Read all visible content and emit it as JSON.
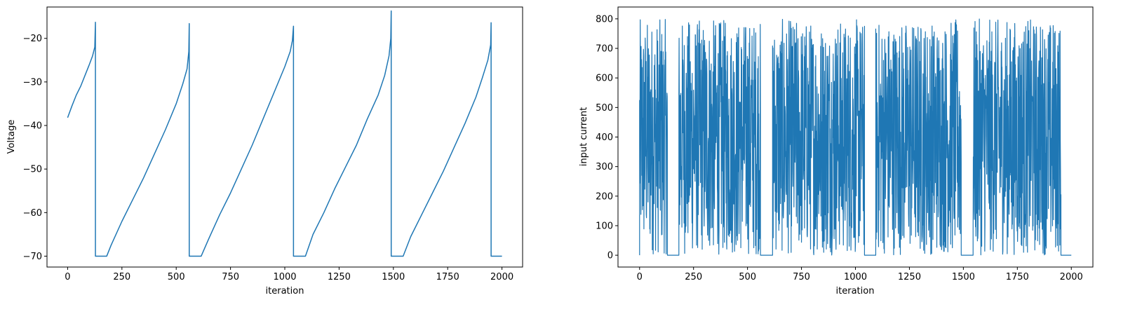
{
  "chart_data": [
    {
      "type": "line",
      "xlabel": "iteration",
      "ylabel": "Voltage",
      "xlim": [
        -95,
        2095
      ],
      "ylim": [
        -72.5,
        -12.8
      ],
      "xticks": [
        0,
        250,
        500,
        750,
        1000,
        1250,
        1500,
        1750,
        2000
      ],
      "yticks": [
        -70,
        -60,
        -50,
        -40,
        -30,
        -20
      ],
      "grid": false,
      "color": "#1f77b4",
      "series": [
        {
          "x": [
            0,
            20,
            40,
            60,
            80,
            100,
            115,
            125,
            128,
            128,
            130,
            130,
            180,
            200,
            250,
            300,
            350,
            400,
            450,
            500,
            530,
            550,
            558,
            560,
            560,
            562,
            562,
            615,
            650,
            700,
            750,
            800,
            850,
            900,
            950,
            1000,
            1025,
            1035,
            1040,
            1040,
            1043,
            1043,
            1095,
            1130,
            1180,
            1230,
            1280,
            1330,
            1380,
            1430,
            1460,
            1480,
            1488,
            1490,
            1490,
            1493,
            1493,
            1545,
            1580,
            1630,
            1680,
            1730,
            1780,
            1830,
            1880,
            1910,
            1935,
            1948,
            1950,
            1950,
            1953,
            1953,
            2000
          ],
          "y": [
            -38.2,
            -35.5,
            -33.0,
            -31.0,
            -28.5,
            -26.0,
            -24.0,
            -22.0,
            -16.3,
            -70,
            -70,
            -70,
            -70,
            -67.5,
            -62.0,
            -57.0,
            -52.0,
            -46.5,
            -41.0,
            -35.0,
            -30.5,
            -27.0,
            -23.0,
            -16.6,
            -70,
            -70,
            -70,
            -70,
            -66.0,
            -60.5,
            -55.5,
            -50.0,
            -44.5,
            -38.5,
            -32.5,
            -26.5,
            -23.0,
            -20.5,
            -17.2,
            -70,
            -70,
            -70,
            -70,
            -65.0,
            -60.0,
            -54.5,
            -49.5,
            -44.5,
            -38.5,
            -33.0,
            -28.5,
            -24.0,
            -20.0,
            -13.7,
            -70,
            -70,
            -70,
            -70,
            -65.5,
            -60.5,
            -55.5,
            -50.5,
            -45.0,
            -39.5,
            -33.5,
            -29.0,
            -25.0,
            -21.5,
            -16.4,
            -70,
            -70,
            -70,
            -70
          ]
        }
      ]
    },
    {
      "type": "line",
      "xlabel": "iteration",
      "ylabel": "input current",
      "xlim": [
        -100,
        2100
      ],
      "ylim": [
        -40,
        840
      ],
      "xticks": [
        0,
        250,
        500,
        750,
        1000,
        1250,
        1500,
        1750,
        2000
      ],
      "yticks": [
        0,
        100,
        200,
        300,
        400,
        500,
        600,
        700,
        800
      ],
      "grid": false,
      "color": "#1f77b4",
      "series": [
        {
          "segments": [
            {
              "start": 0,
              "end": 129,
              "min": 0,
              "max": 800
            },
            {
              "start": 182,
              "end": 560,
              "min": 0,
              "max": 800
            },
            {
              "start": 616,
              "end": 1042,
              "min": 0,
              "max": 800
            },
            {
              "start": 1094,
              "end": 1490,
              "min": 0,
              "max": 800
            },
            {
              "start": 1545,
              "end": 1952,
              "min": 0,
              "max": 800
            }
          ],
          "baseline_value": 0
        }
      ]
    }
  ]
}
